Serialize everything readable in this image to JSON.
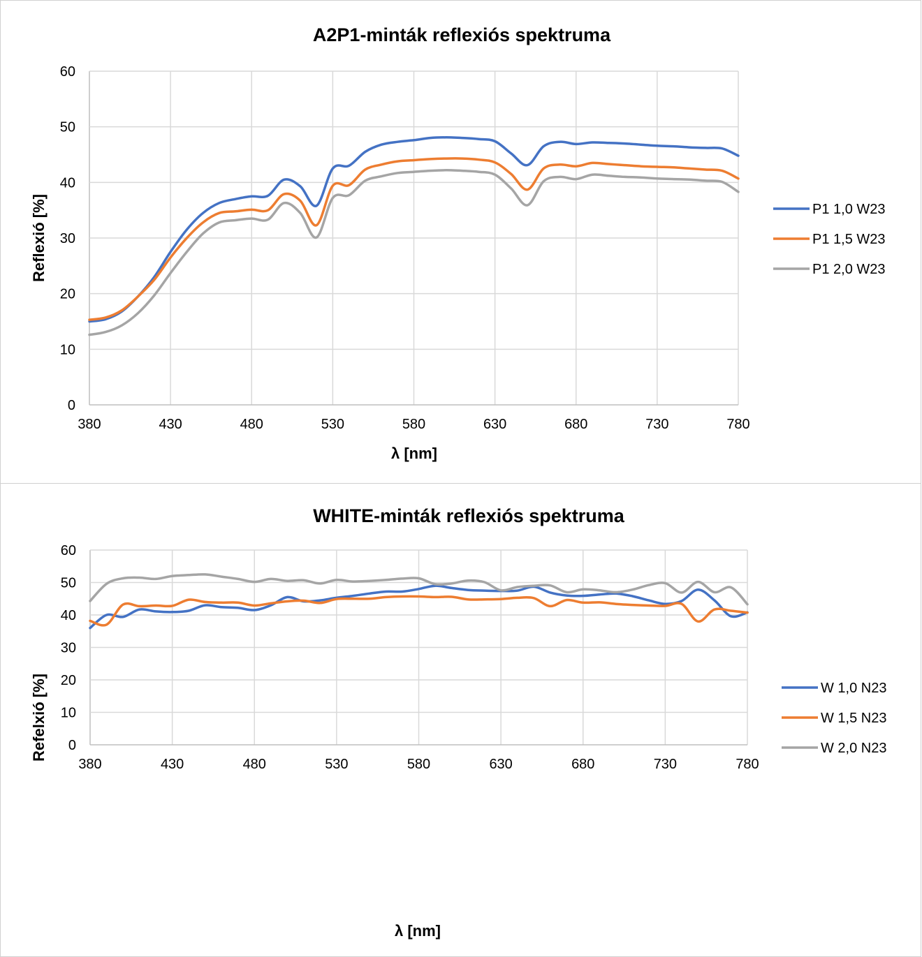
{
  "chart_data": [
    {
      "type": "line",
      "title": "A2P1-minták reflexiós spektruma",
      "xlabel": "λ [nm]",
      "ylabel": "Reflexió [%]",
      "xlim": [
        380,
        780
      ],
      "ylim": [
        0,
        60
      ],
      "x_ticks": [
        380,
        430,
        480,
        530,
        580,
        630,
        680,
        730,
        780
      ],
      "y_ticks": [
        0,
        10,
        20,
        30,
        40,
        50,
        60
      ],
      "grid": true,
      "legend_position": "right",
      "series": [
        {
          "name": "P1 1,0 W23",
          "color": "#4472C4",
          "x": [
            380,
            390,
            400,
            410,
            420,
            430,
            440,
            450,
            460,
            470,
            480,
            490,
            500,
            510,
            520,
            530,
            540,
            550,
            560,
            570,
            580,
            590,
            600,
            610,
            620,
            630,
            640,
            650,
            660,
            670,
            680,
            690,
            700,
            710,
            720,
            730,
            740,
            750,
            760,
            770,
            780
          ],
          "y": [
            15,
            15.4,
            16.8,
            19.5,
            23,
            27.5,
            31.5,
            34.5,
            36.3,
            37,
            37.5,
            37.6,
            40.5,
            39.3,
            35.8,
            42.5,
            43,
            45.5,
            46.8,
            47.3,
            47.6,
            48,
            48.1,
            48,
            47.8,
            47.4,
            45.2,
            43.1,
            46.5,
            47.3,
            46.9,
            47.2,
            47.1,
            47,
            46.8,
            46.6,
            46.5,
            46.3,
            46.2,
            46.1,
            44.8
          ]
        },
        {
          "name": "P1 1,5 W23",
          "color": "#ED7D31",
          "x": [
            380,
            390,
            400,
            410,
            420,
            430,
            440,
            450,
            460,
            470,
            480,
            490,
            500,
            510,
            520,
            530,
            540,
            550,
            560,
            570,
            580,
            590,
            600,
            610,
            620,
            630,
            640,
            650,
            660,
            670,
            680,
            690,
            700,
            710,
            720,
            730,
            740,
            750,
            760,
            770,
            780
          ],
          "y": [
            15.3,
            15.7,
            17,
            19.5,
            22.5,
            26.5,
            30,
            32.8,
            34.5,
            34.8,
            35.1,
            35,
            37.9,
            36.7,
            32.3,
            39.4,
            39.5,
            42.3,
            43.2,
            43.8,
            44,
            44.2,
            44.3,
            44.3,
            44.1,
            43.6,
            41.5,
            38.7,
            42.5,
            43.2,
            42.9,
            43.5,
            43.3,
            43.1,
            42.9,
            42.8,
            42.7,
            42.5,
            42.3,
            42.1,
            40.7
          ]
        },
        {
          "name": "P1 2,0 W23",
          "color": "#A5A5A5",
          "x": [
            380,
            390,
            400,
            410,
            420,
            430,
            440,
            450,
            460,
            470,
            480,
            490,
            500,
            510,
            520,
            530,
            540,
            550,
            560,
            570,
            580,
            590,
            600,
            610,
            620,
            630,
            640,
            650,
            660,
            670,
            680,
            690,
            700,
            710,
            720,
            730,
            740,
            750,
            760,
            770,
            780
          ],
          "y": [
            12.6,
            13.1,
            14.3,
            16.5,
            19.7,
            23.7,
            27.5,
            30.8,
            32.8,
            33.2,
            33.5,
            33.3,
            36.3,
            34.5,
            30.1,
            37.2,
            37.7,
            40.3,
            41.1,
            41.7,
            41.9,
            42.1,
            42.2,
            42.1,
            41.9,
            41.4,
            38.9,
            35.9,
            40.2,
            41,
            40.6,
            41.4,
            41.2,
            41,
            40.9,
            40.7,
            40.6,
            40.5,
            40.3,
            40.1,
            38.3
          ]
        }
      ]
    },
    {
      "type": "line",
      "title": "WHITE-minták reflexiós spektruma",
      "xlabel": "λ [nm]",
      "ylabel": "Refelxió [%]",
      "xlim": [
        380,
        780
      ],
      "ylim": [
        0,
        60
      ],
      "x_ticks": [
        380,
        430,
        480,
        530,
        580,
        630,
        680,
        730,
        780
      ],
      "y_ticks": [
        0,
        10,
        20,
        30,
        40,
        50,
        60
      ],
      "grid": true,
      "legend_position": "right",
      "series": [
        {
          "name": "W 1,0 N23",
          "color": "#4472C4",
          "x": [
            380,
            390,
            400,
            410,
            420,
            430,
            440,
            450,
            460,
            470,
            480,
            490,
            500,
            510,
            520,
            530,
            540,
            550,
            560,
            570,
            580,
            590,
            600,
            610,
            620,
            630,
            640,
            650,
            660,
            670,
            680,
            690,
            700,
            710,
            720,
            730,
            740,
            750,
            760,
            770,
            780
          ],
          "y": [
            36,
            40,
            39.4,
            41.7,
            41.1,
            40.9,
            41.3,
            43,
            42.4,
            42.2,
            41.5,
            43,
            45.5,
            44.2,
            44.5,
            45.3,
            45.9,
            46.6,
            47.2,
            47.2,
            48,
            49,
            48.3,
            47.7,
            47.5,
            47.4,
            47.5,
            48.7,
            46.9,
            46,
            45.9,
            46.3,
            46.6,
            45.8,
            44.5,
            43.4,
            44.3,
            47.8,
            44.5,
            39.6,
            40.8
          ]
        },
        {
          "name": "W 1,5 N23",
          "color": "#ED7D31",
          "x": [
            380,
            390,
            400,
            410,
            420,
            430,
            440,
            450,
            460,
            470,
            480,
            490,
            500,
            510,
            520,
            530,
            540,
            550,
            560,
            570,
            580,
            590,
            600,
            610,
            620,
            630,
            640,
            650,
            660,
            670,
            680,
            690,
            700,
            710,
            720,
            730,
            740,
            750,
            760,
            770,
            780
          ],
          "y": [
            38.2,
            37,
            43.2,
            42.7,
            42.9,
            42.8,
            44.7,
            44,
            43.8,
            43.8,
            42.9,
            43.6,
            44.2,
            44.4,
            43.7,
            44.9,
            45,
            45,
            45.5,
            45.7,
            45.7,
            45.5,
            45.6,
            44.8,
            44.8,
            44.9,
            45.3,
            45.2,
            42.7,
            44.6,
            43.8,
            43.9,
            43.4,
            43.1,
            42.9,
            42.8,
            43.4,
            38,
            41.7,
            41.3,
            40.7
          ]
        },
        {
          "name": "W 2,0 N23",
          "color": "#A5A5A5",
          "x": [
            380,
            390,
            400,
            410,
            420,
            430,
            440,
            450,
            460,
            470,
            480,
            490,
            500,
            510,
            520,
            530,
            540,
            550,
            560,
            570,
            580,
            590,
            600,
            610,
            620,
            630,
            640,
            650,
            660,
            670,
            680,
            690,
            700,
            710,
            720,
            730,
            740,
            750,
            760,
            770,
            780
          ],
          "y": [
            44.3,
            49.6,
            51.3,
            51.5,
            51.1,
            52,
            52.3,
            52.5,
            51.8,
            51.1,
            50.2,
            51.1,
            50.5,
            50.7,
            49.7,
            50.8,
            50.3,
            50.5,
            50.8,
            51.2,
            51.3,
            49.5,
            49.7,
            50.6,
            50.1,
            47.6,
            48.6,
            49,
            49.1,
            47,
            47.9,
            47.6,
            47,
            47.8,
            49.2,
            49.8,
            46.9,
            50.2,
            47,
            48.5,
            43.3
          ]
        }
      ]
    }
  ]
}
